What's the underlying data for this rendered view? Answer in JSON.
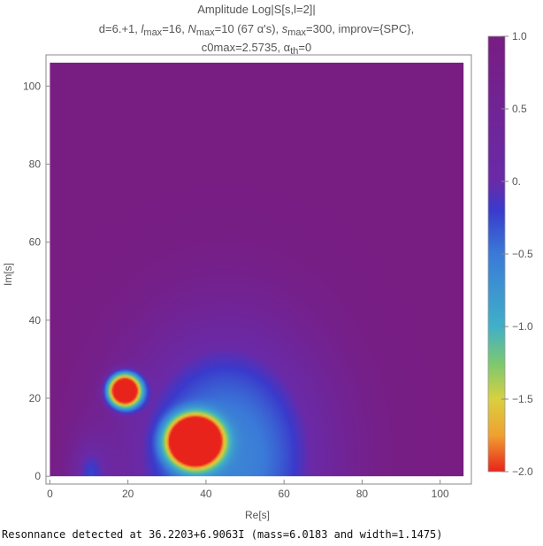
{
  "chart_data": {
    "type": "heatmap",
    "title": "Amplitude Log|S[s,l=2]|",
    "subtitle_line1": {
      "p1": "d=6.+1, ",
      "lmax_sym": "l",
      "lmax_sub": "max",
      "p2": "=16, ",
      "nmax_sym": "N",
      "nmax_sub": "max",
      "p3": "=10 (67 α's), ",
      "smax_sym": "s",
      "smax_sub": "max",
      "p4": "=300, improv={SPC},"
    },
    "subtitle_line2": {
      "p1": "c0max=2.5735, ",
      "ath_sym": "α",
      "ath_sub": "th",
      "p2": "=0"
    },
    "xlabel": "Re[s]",
    "ylabel": "Im[s]",
    "xlim": [
      -1,
      108
    ],
    "ylim": [
      -2,
      108
    ],
    "data_extent": {
      "x": [
        0,
        106
      ],
      "y": [
        0,
        106
      ]
    },
    "xticks": [
      0,
      20,
      40,
      60,
      80,
      100
    ],
    "yticks": [
      0,
      20,
      40,
      60,
      80,
      100
    ],
    "colorbar": {
      "range": [
        -2.0,
        1.0
      ],
      "ticks": [
        {
          "value": 1.0,
          "label": "1.0"
        },
        {
          "value": 0.5,
          "label": "0.5"
        },
        {
          "value": 0.0,
          "label": "0."
        },
        {
          "value": -0.5,
          "label": "−0.5"
        },
        {
          "value": -1.0,
          "label": "−1.0"
        },
        {
          "value": -1.5,
          "label": "−1.5"
        },
        {
          "value": -2.0,
          "label": "−2.0"
        }
      ],
      "color_stops": [
        {
          "value": -2.0,
          "color": "#e8231b"
        },
        {
          "value": -1.75,
          "color": "#f0a030"
        },
        {
          "value": -1.5,
          "color": "#d8d040"
        },
        {
          "value": -1.25,
          "color": "#7ac870"
        },
        {
          "value": -1.0,
          "color": "#40b0c8"
        },
        {
          "value": -0.5,
          "color": "#3a7ad8"
        },
        {
          "value": -0.2,
          "color": "#3a3acc"
        },
        {
          "value": 0.0,
          "color": "#6a2aa8"
        },
        {
          "value": 1.0,
          "color": "#781d82"
        }
      ]
    },
    "background_value": 1.0,
    "features": [
      {
        "kind": "minimum",
        "x": 19,
        "y": 22,
        "spread_x": 4.5,
        "spread_y": 4.5,
        "depth": 3.0
      },
      {
        "kind": "minimum",
        "x": 37,
        "y": 9,
        "spread_x": 7.0,
        "spread_y": 6.5,
        "depth": 3.0
      },
      {
        "kind": "basin",
        "x": 45,
        "y": 5,
        "spread_x": 28.0,
        "spread_y": 36.0,
        "depth": 1.6
      },
      {
        "kind": "zero-line",
        "x": 10,
        "y": 0,
        "spread_x": 5.0,
        "spread_y": 10.0,
        "depth": 0.9
      }
    ]
  },
  "footer": {
    "text": "Resonnance detected at 36.2203+6.9063I (mass=6.0183 and width=1.1475)"
  }
}
